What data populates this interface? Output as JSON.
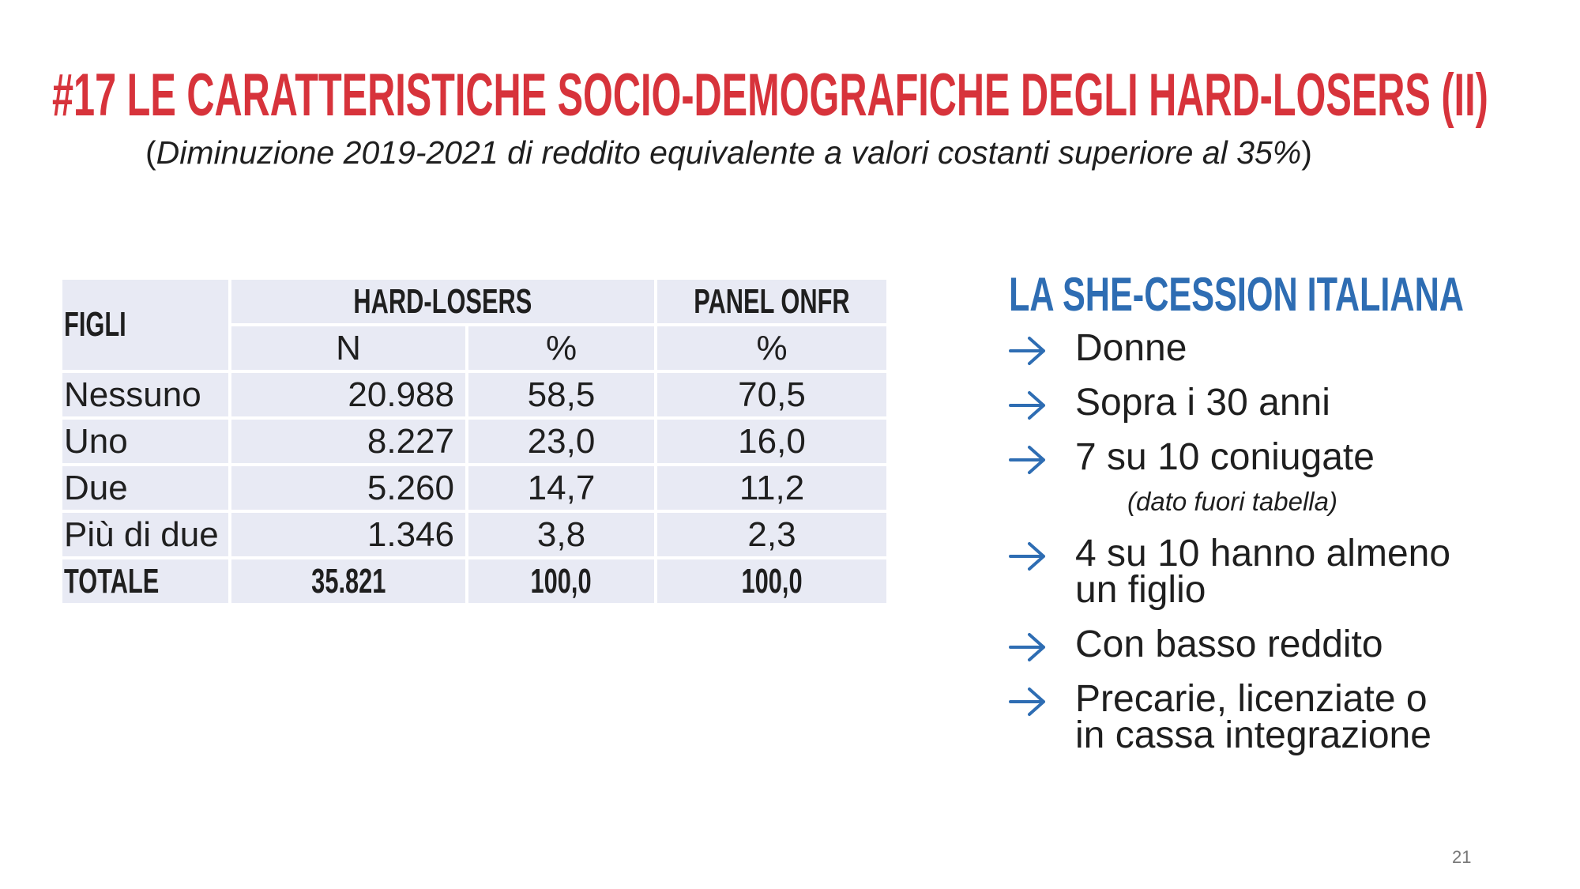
{
  "title": "#17 LE CARATTERISTICHE SOCIO-DEMOGRAFICHE DEGLI HARD-LOSERS (II)",
  "subtitle": {
    "open": "(",
    "italic": "Diminuzione 2019-2021 di reddito equivalente a valori costanti superiore al 35%",
    "close": ")"
  },
  "table": {
    "row_header": "FIGLI",
    "group_hard": "HARD-LOSERS",
    "group_panel": "PANEL ONFR",
    "sub_n": "N",
    "sub_pct1": "%",
    "sub_pct2": "%",
    "rows": [
      {
        "label": "Nessuno",
        "n": "20.988",
        "pct": "58,5",
        "panel": "70,5"
      },
      {
        "label": "Uno",
        "n": "8.227",
        "pct": "23,0",
        "panel": "16,0"
      },
      {
        "label": "Due",
        "n": "5.260",
        "pct": "14,7",
        "panel": "11,2"
      },
      {
        "label": "Più di due",
        "n": "1.346",
        "pct": "3,8",
        "panel": "2,3"
      }
    ],
    "total": {
      "label": "TOTALE",
      "n": "35.821",
      "pct": "100,0",
      "panel": "100,0"
    }
  },
  "side": {
    "title": "LA SHE-CESSION ITALIANA",
    "bullets": [
      {
        "line1": "Donne"
      },
      {
        "line1": "Sopra i 30 anni"
      },
      {
        "line1": "7 su 10 coniugate"
      }
    ],
    "note": "(dato fuori tabella)",
    "bullets2": [
      {
        "line1": "4 su 10 hanno almeno",
        "line2": "un figlio"
      },
      {
        "line1": "Con basso reddito"
      },
      {
        "line1": "Precarie, licenziate o",
        "line2": "in cassa integrazione"
      }
    ]
  },
  "page_number": "21",
  "colors": {
    "title": "#d7333b",
    "accent": "#2e6db3",
    "table_bg": "#e8eaf4"
  },
  "icons": {
    "bullet": "arrow-right-icon"
  }
}
